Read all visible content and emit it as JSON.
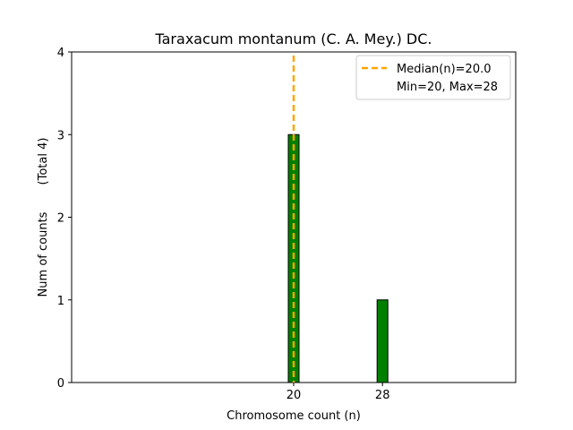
{
  "chart_data": {
    "type": "bar",
    "title": "Taraxacum montanum (C. A. Mey.) DC.",
    "xlabel": "Chromosome count (n)",
    "ylabel": "Num of counts",
    "ylabel_extra": "(Total 4)",
    "xlim": [
      0,
      40
    ],
    "ylim": [
      0,
      4
    ],
    "xticks": [
      20,
      28
    ],
    "yticks": [
      0,
      1,
      2,
      3,
      4
    ],
    "bars": [
      {
        "x": 20,
        "value": 3
      },
      {
        "x": 28,
        "value": 1
      }
    ],
    "median": 20.0,
    "legend": {
      "position": "top-right",
      "median_label": "Median(n)=20.0",
      "range_label": "Min=20, Max=28"
    },
    "grid": false
  },
  "colors": {
    "bar_fill": "#008000",
    "bar_edge": "#000000",
    "median_line": "#FFA500",
    "axis": "#000000"
  }
}
